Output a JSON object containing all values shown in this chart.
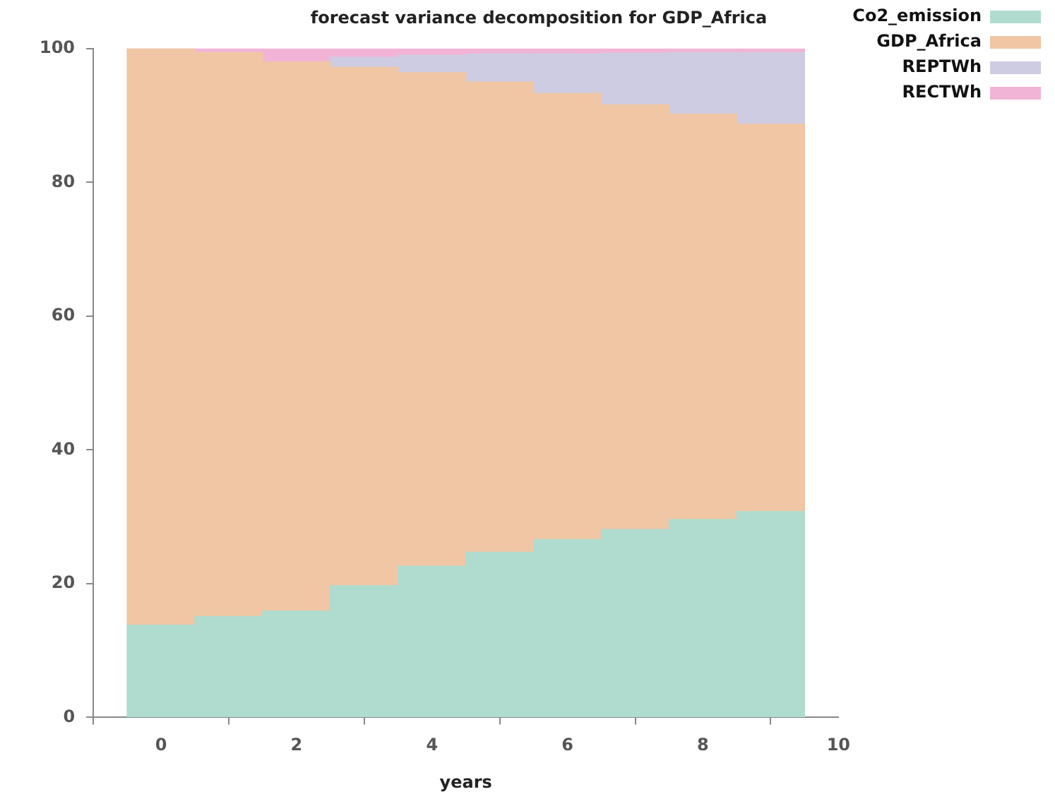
{
  "chart_data": {
    "type": "bar",
    "stacked": true,
    "title": "forecast variance decomposition for GDP_Africa",
    "xlabel": "years",
    "x": [
      0,
      1,
      2,
      3,
      4,
      5,
      6,
      7,
      8,
      9
    ],
    "xlim": [
      -1,
      10
    ],
    "xticks": [
      0,
      2,
      4,
      6,
      8,
      10
    ],
    "ylim": [
      0,
      100
    ],
    "yticks": [
      0,
      20,
      40,
      60,
      80,
      100
    ],
    "grid": false,
    "legend": "top right",
    "series": [
      {
        "name": "Co2_emission",
        "color": "#b0dcd0",
        "values": [
          13.8,
          15.1,
          15.9,
          19.7,
          22.6,
          24.7,
          26.6,
          28.1,
          29.6,
          30.8
        ]
      },
      {
        "name": "GDP_Africa",
        "color": "#f0c6a4",
        "values": [
          86.2,
          84.3,
          82.1,
          77.5,
          73.8,
          70.3,
          66.7,
          63.5,
          60.6,
          57.9
        ]
      },
      {
        "name": "REPTWh",
        "color": "#cecce2",
        "values": [
          0,
          0,
          0,
          1.5,
          2.6,
          4.2,
          5.9,
          7.7,
          9.2,
          10.7
        ]
      },
      {
        "name": "RECTWh",
        "color": "#f2b4d6",
        "values": [
          0,
          0.6,
          2.0,
          1.3,
          1.0,
          0.8,
          0.8,
          0.7,
          0.6,
          0.6
        ]
      }
    ]
  }
}
